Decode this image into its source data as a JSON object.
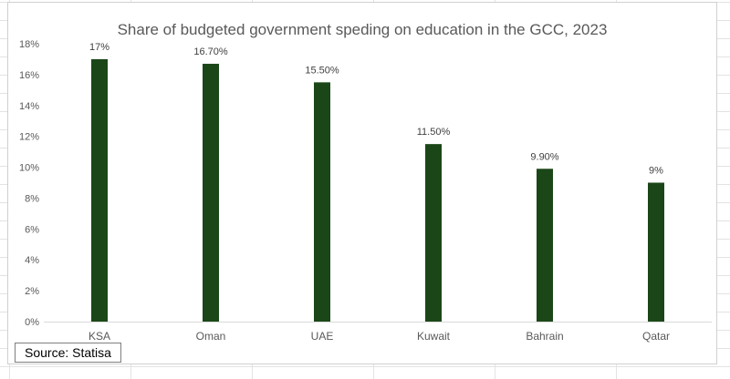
{
  "chart_data": {
    "type": "bar",
    "title": "Share of budgeted government speding on education in the GCC, 2023",
    "categories": [
      "KSA",
      "Oman",
      "UAE",
      "Kuwait",
      "Bahrain",
      "Qatar"
    ],
    "values": [
      17,
      16.7,
      15.5,
      11.5,
      9.9,
      9
    ],
    "data_labels": [
      "17%",
      "16.70%",
      "15.50%",
      "11.50%",
      "9.90%",
      "9%"
    ],
    "ylim": [
      0,
      18
    ],
    "yticks": [
      0,
      2,
      4,
      6,
      8,
      10,
      12,
      14,
      16,
      18
    ],
    "ytick_labels": [
      "0%",
      "2%",
      "4%",
      "6%",
      "8%",
      "10%",
      "12%",
      "14%",
      "16%",
      "18%"
    ],
    "xlabel": "",
    "ylabel": "",
    "grid": false,
    "legend": "none",
    "bar_color": "#1b4718"
  },
  "source_note": "Source: Statisa"
}
